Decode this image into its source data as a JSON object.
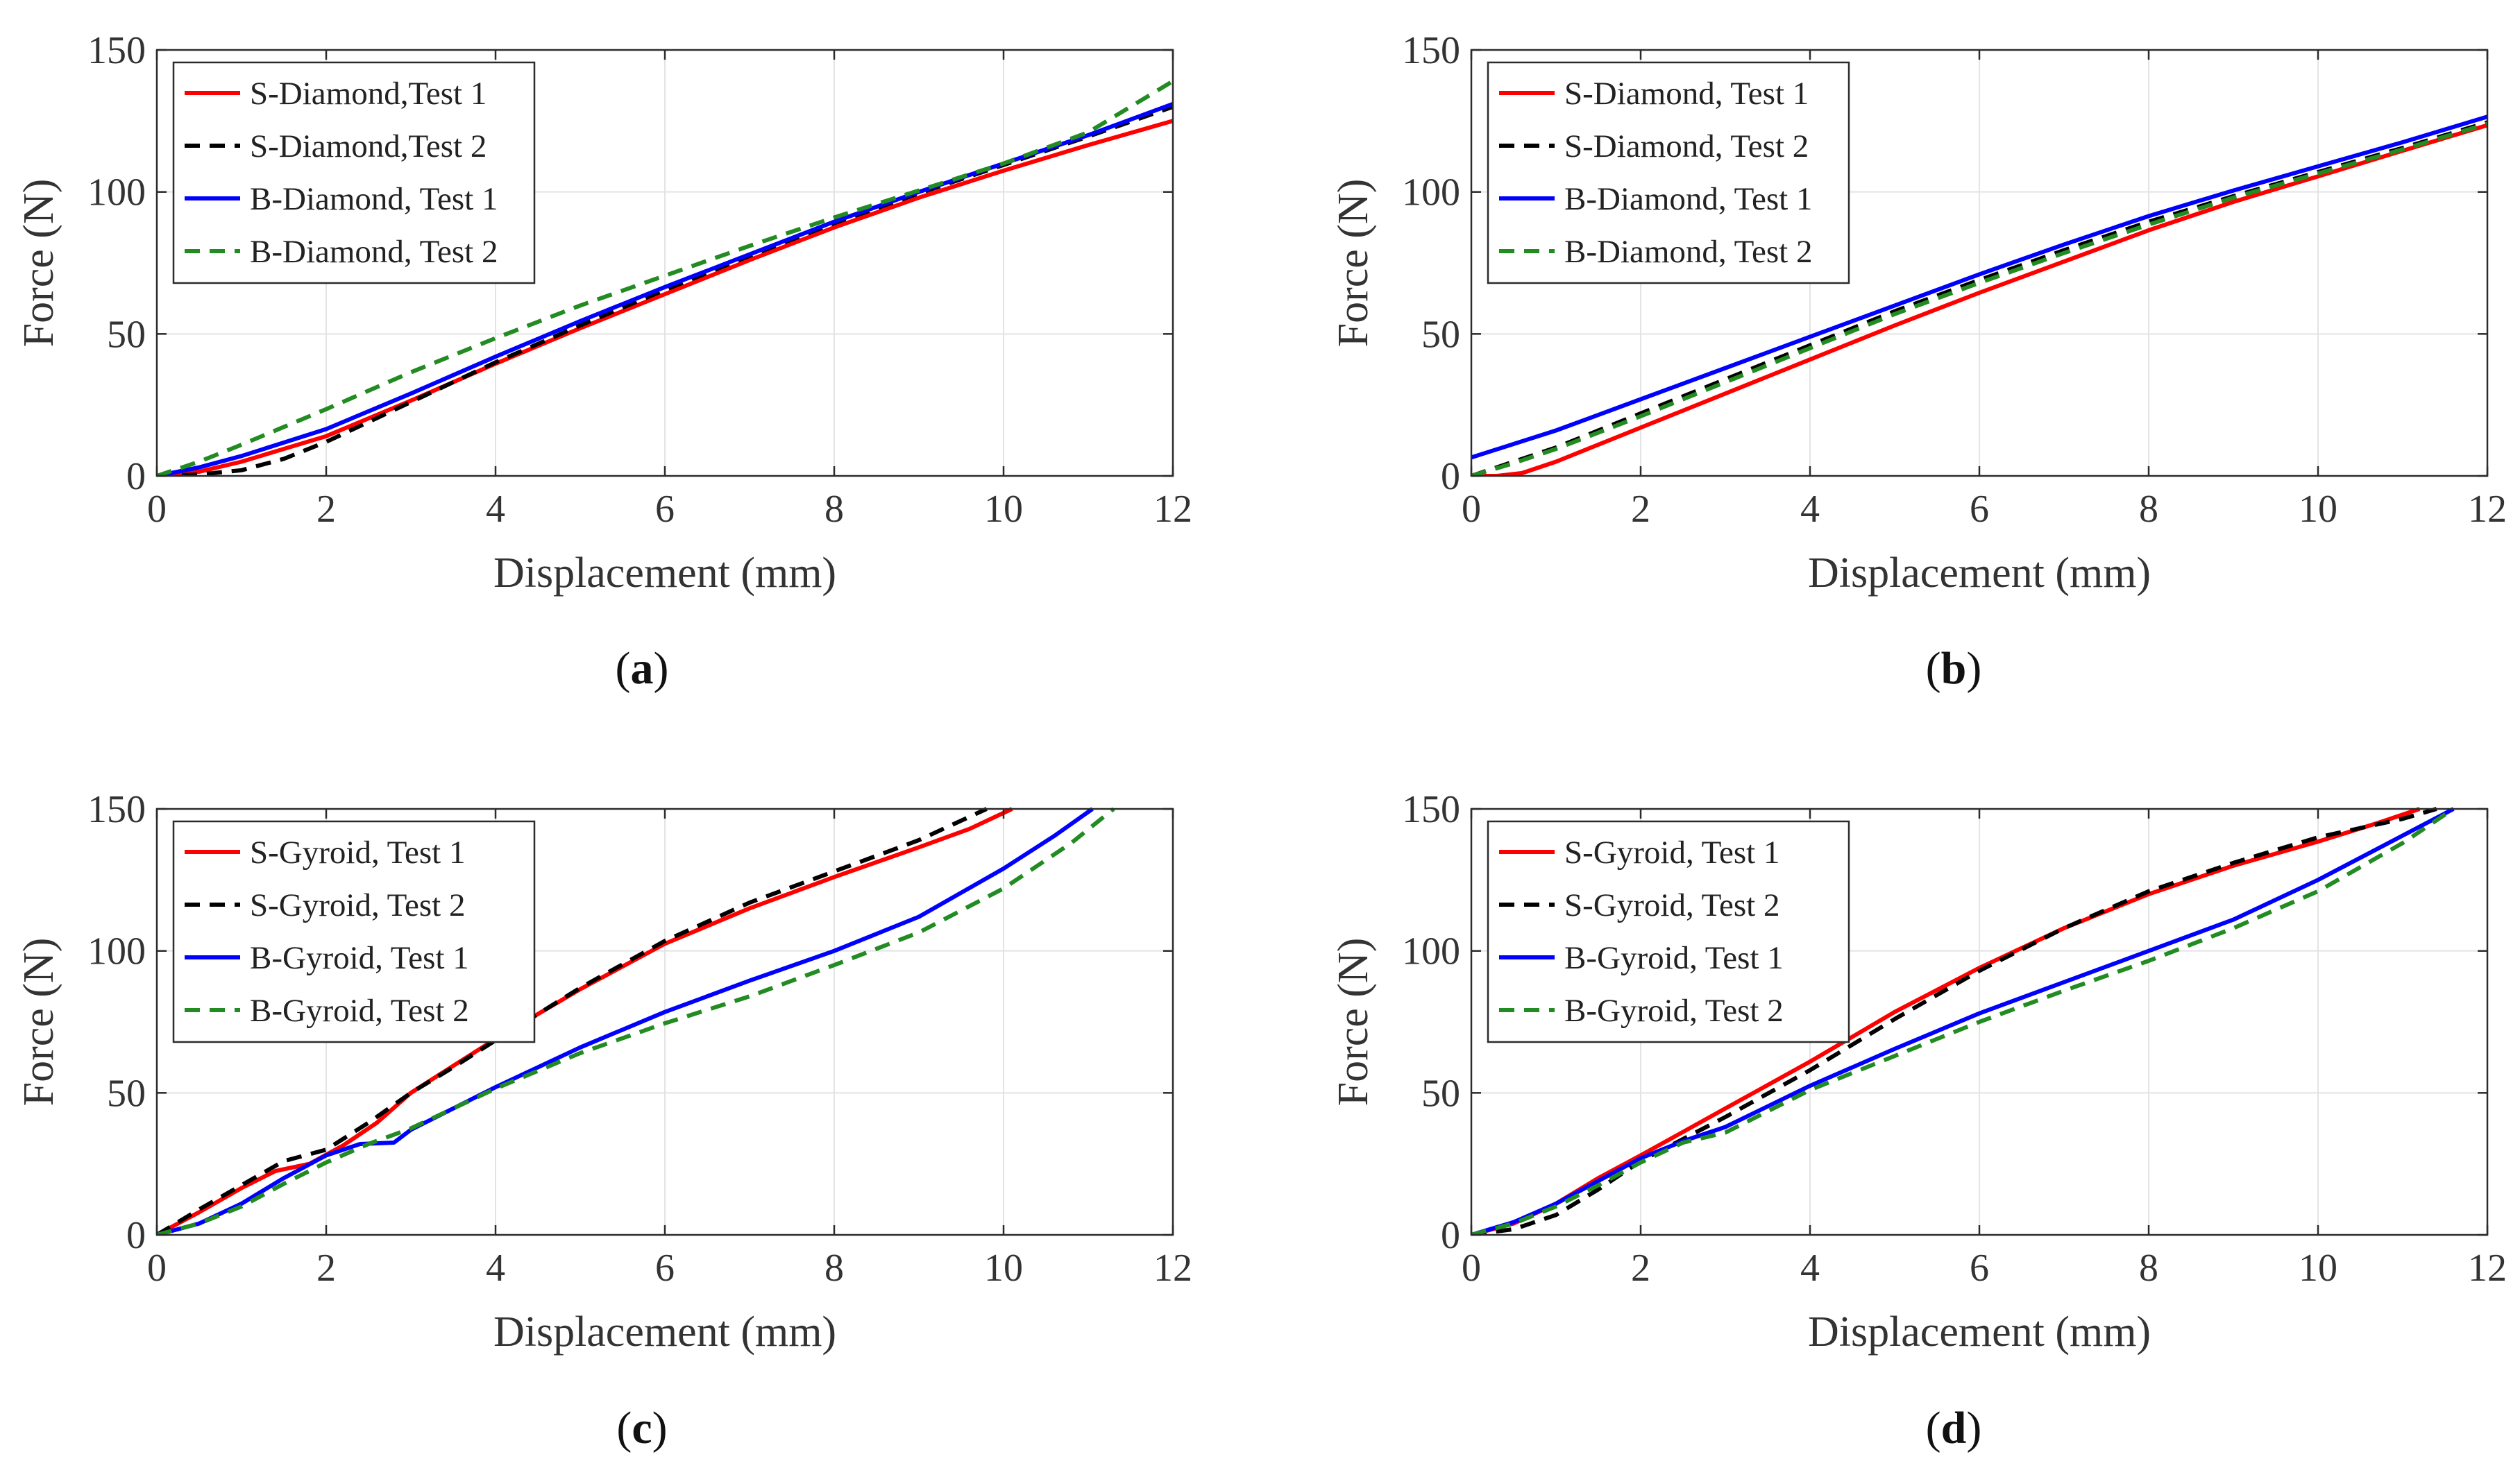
{
  "figure": {
    "captions": [
      "(a)",
      "(b)",
      "(c)",
      "(d)"
    ]
  },
  "chart_data": [
    {
      "type": "line",
      "panel": "a",
      "title": "",
      "xlabel": "Displacement (mm)",
      "ylabel": "Force  (N)",
      "xlim": [
        0,
        12
      ],
      "ylim": [
        0,
        150
      ],
      "xticks": [
        0,
        2,
        4,
        6,
        8,
        10,
        12
      ],
      "yticks": [
        0,
        50,
        100,
        150
      ],
      "grid": true,
      "legend_position": "top-left",
      "series": [
        {
          "name": "S-Diamond,Test 1",
          "color": "#ff0000",
          "dash": "solid",
          "x": [
            0,
            0.5,
            1,
            2,
            3,
            4,
            5,
            6,
            7,
            8,
            9,
            10,
            11,
            12
          ],
          "y": [
            0,
            1.5,
            5,
            14,
            26.5,
            39.5,
            52,
            64,
            76,
            87.5,
            98,
            107.5,
            116.5,
            125
          ]
        },
        {
          "name": "S-Diamond,Test 2",
          "color": "#000000",
          "dash": "dashed",
          "x": [
            0,
            0.5,
            1,
            1.5,
            2,
            3,
            4,
            5,
            6,
            7,
            8,
            9,
            10,
            11,
            12
          ],
          "y": [
            0,
            0.5,
            2,
            6,
            12,
            26,
            40,
            53,
            65.5,
            77.5,
            89,
            99.5,
            109.5,
            119.5,
            130
          ]
        },
        {
          "name": "B-Diamond, Test 1",
          "color": "#0000ff",
          "dash": "solid",
          "x": [
            0,
            0.5,
            1,
            2,
            3,
            4,
            5,
            6,
            7,
            8,
            9,
            10,
            11,
            12
          ],
          "y": [
            0,
            3,
            7,
            16.5,
            29,
            42,
            54.5,
            66.5,
            78,
            89.5,
            100,
            110,
            120,
            131
          ]
        },
        {
          "name": "B-Diamond, Test 2",
          "color": "#228b22",
          "dash": "dashed",
          "x": [
            0,
            0.5,
            1,
            2,
            3,
            4,
            5,
            6,
            7,
            8,
            9,
            10,
            11,
            12
          ],
          "y": [
            0,
            5,
            11,
            23.5,
            36.5,
            48.5,
            60,
            70.5,
            81,
            91,
            100.5,
            110,
            121,
            139
          ]
        }
      ]
    },
    {
      "type": "line",
      "panel": "b",
      "title": "",
      "xlabel": "Displacement (mm)",
      "ylabel": "Force  (N)",
      "xlim": [
        0,
        12
      ],
      "ylim": [
        0,
        150
      ],
      "xticks": [
        0,
        2,
        4,
        6,
        8,
        10,
        12
      ],
      "yticks": [
        0,
        50,
        100,
        150
      ],
      "grid": true,
      "legend_position": "top-left",
      "series": [
        {
          "name": "S-Diamond, Test 1",
          "color": "#ff0000",
          "dash": "solid",
          "x": [
            0,
            0.3,
            0.6,
            1,
            2,
            3,
            4,
            5,
            6,
            7,
            8,
            9,
            10,
            11,
            12
          ],
          "y": [
            0,
            0,
            1,
            5,
            17,
            29,
            41,
            53,
            64.5,
            75.5,
            86.5,
            96.5,
            105.5,
            114.5,
            123.5
          ]
        },
        {
          "name": "S-Diamond, Test 2",
          "color": "#000000",
          "dash": "dashed",
          "x": [
            0,
            0.5,
            1,
            2,
            3,
            4,
            5,
            6,
            7,
            8,
            9,
            10,
            11,
            12
          ],
          "y": [
            0,
            5,
            10,
            22,
            34,
            46,
            58,
            69,
            79.5,
            89.5,
            98.5,
            107,
            115.5,
            124.5
          ]
        },
        {
          "name": "B-Diamond, Test 1",
          "color": "#0000ff",
          "dash": "solid",
          "x": [
            0,
            1,
            2,
            3,
            4,
            5,
            6,
            7,
            8,
            9,
            10,
            11,
            12
          ],
          "y": [
            6.5,
            16,
            27,
            38,
            49,
            60,
            71,
            81.5,
            91.5,
            100.5,
            109,
            117.5,
            126.5
          ]
        },
        {
          "name": "B-Diamond, Test 2",
          "color": "#228b22",
          "dash": "dashed",
          "x": [
            0,
            0.5,
            1,
            2,
            3,
            4,
            5,
            6,
            7,
            8,
            9,
            10,
            11,
            12
          ],
          "y": [
            0,
            4.5,
            9.5,
            21,
            33,
            45,
            57,
            68,
            78.5,
            88.5,
            98,
            106.5,
            115,
            124
          ]
        }
      ]
    },
    {
      "type": "line",
      "panel": "c",
      "title": "",
      "xlabel": "Displacement (mm)",
      "ylabel": "Force  (N)",
      "xlim": [
        0,
        12
      ],
      "ylim": [
        0,
        150
      ],
      "xticks": [
        0,
        2,
        4,
        6,
        8,
        10,
        12
      ],
      "yticks": [
        0,
        50,
        100,
        150
      ],
      "grid": true,
      "legend_position": "top-left",
      "series": [
        {
          "name": "S-Gyroid, Test 1",
          "color": "#ff0000",
          "dash": "solid",
          "x": [
            0,
            0.5,
            1,
            1.4,
            1.8,
            2.2,
            2.6,
            3,
            3.5,
            4,
            5,
            6,
            7,
            8,
            9,
            9.6,
            10.1
          ],
          "y": [
            0,
            8,
            16.5,
            22.5,
            25,
            31.5,
            39.5,
            50,
            59.5,
            69,
            86.5,
            102.5,
            115,
            126,
            136.5,
            143,
            150
          ]
        },
        {
          "name": "S-Gyroid, Test 2",
          "color": "#000000",
          "dash": "dashed",
          "x": [
            0,
            0.5,
            1,
            1.5,
            2,
            2.5,
            3,
            3.5,
            4,
            5,
            6,
            7,
            8,
            9,
            9.8
          ],
          "y": [
            0,
            9,
            17.5,
            26,
            30,
            39.5,
            50,
            59,
            68.5,
            87,
            103.5,
            117,
            128,
            139,
            150
          ]
        },
        {
          "name": "B-Gyroid, Test 1",
          "color": "#0000ff",
          "dash": "solid",
          "x": [
            0,
            0.5,
            1,
            1.5,
            2,
            2.4,
            2.8,
            3,
            4,
            5,
            6,
            7,
            8,
            9,
            10,
            10.6,
            11.05
          ],
          "y": [
            0,
            4,
            11,
            20,
            28,
            32,
            32.5,
            37,
            52,
            66,
            78.5,
            89.5,
            100,
            112,
            129,
            140.5,
            150
          ]
        },
        {
          "name": "B-Gyroid, Test 2",
          "color": "#228b22",
          "dash": "dashed",
          "x": [
            0,
            0.5,
            1,
            1.5,
            2,
            2.5,
            3,
            4,
            5,
            6,
            7,
            8,
            9,
            10,
            10.8,
            11.3
          ],
          "y": [
            0,
            4,
            10,
            18,
            25.5,
            32,
            37.5,
            51.5,
            64,
            74.5,
            84,
            95,
            106.5,
            122,
            138,
            150
          ]
        }
      ]
    },
    {
      "type": "line",
      "panel": "d",
      "title": "",
      "xlabel": "Displacement (mm)",
      "ylabel": "Force  (N)",
      "xlim": [
        0,
        12
      ],
      "ylim": [
        0,
        150
      ],
      "xticks": [
        0,
        2,
        4,
        6,
        8,
        10,
        12
      ],
      "yticks": [
        0,
        50,
        100,
        150
      ],
      "grid": true,
      "legend_position": "top-left",
      "series": [
        {
          "name": "S-Gyroid, Test 1",
          "color": "#ff0000",
          "dash": "solid",
          "x": [
            0,
            0.5,
            1,
            1.5,
            2,
            3,
            4,
            5,
            6,
            7,
            8,
            9,
            10,
            10.7,
            11.2
          ],
          "y": [
            0,
            4,
            11,
            20,
            28,
            44.5,
            61,
            78.5,
            94,
            108,
            120,
            130,
            138.5,
            145,
            150
          ]
        },
        {
          "name": "S-Gyroid, Test 2",
          "color": "#000000",
          "dash": "dashed",
          "x": [
            0,
            0.5,
            1,
            1.5,
            2,
            3,
            4,
            5,
            6,
            7,
            8,
            9,
            10,
            11,
            11.4
          ],
          "y": [
            0,
            2,
            7,
            16,
            26,
            41.5,
            58,
            76,
            93,
            108,
            121,
            131,
            140,
            146.5,
            150
          ]
        },
        {
          "name": "B-Gyroid, Test 1",
          "color": "#0000ff",
          "dash": "solid",
          "x": [
            0,
            0.5,
            1,
            1.5,
            2,
            2.5,
            3,
            4,
            5,
            6,
            7,
            8,
            9,
            10,
            10.8,
            11.6
          ],
          "y": [
            0,
            4.5,
            11,
            19,
            27,
            33,
            38,
            52.5,
            65.5,
            78,
            89,
            100,
            111,
            125,
            137.5,
            150
          ]
        },
        {
          "name": "B-Gyroid, Test 2",
          "color": "#228b22",
          "dash": "dashed",
          "x": [
            0,
            0.5,
            1,
            1.5,
            2,
            2.5,
            3,
            4,
            5,
            6,
            7,
            8,
            9,
            10,
            11,
            11.6
          ],
          "y": [
            0,
            4,
            10,
            17.5,
            25.5,
            32.5,
            36,
            51,
            63,
            75,
            86,
            96.5,
            108,
            121,
            138,
            150
          ]
        }
      ]
    }
  ]
}
